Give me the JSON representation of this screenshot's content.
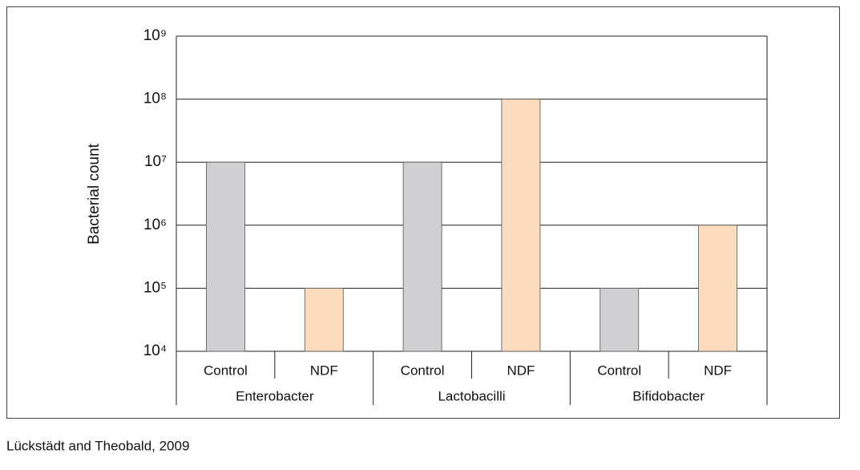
{
  "chart_data": {
    "type": "bar",
    "ylabel": "Bacterial count",
    "categories": [
      "Control",
      "NDF",
      "Control",
      "NDF",
      "Control",
      "NDF"
    ],
    "groups": [
      "Enterobacter",
      "Lactobacilli",
      "Bifidobacter"
    ],
    "values": [
      10000000,
      100000,
      10000000,
      100000000,
      100000,
      1000000
    ],
    "colors": [
      "#d0d0d2",
      "#fcdcbd",
      "#d0d0d2",
      "#fcdcbd",
      "#d0d0d2",
      "#fcdcbd"
    ],
    "log_scale": true,
    "grid": true,
    "ylim": [
      10000,
      1000000000
    ],
    "yticks": [
      {
        "value": 10000,
        "label": "10⁴"
      },
      {
        "value": 100000,
        "label": "10⁵"
      },
      {
        "value": 1000000,
        "label": "10⁶"
      },
      {
        "value": 10000000,
        "label": "10⁷"
      },
      {
        "value": 100000000,
        "label": "10⁸"
      },
      {
        "value": 1000000000,
        "label": "10⁹"
      }
    ],
    "source": "Lückstädt and Theobald, 2009"
  }
}
